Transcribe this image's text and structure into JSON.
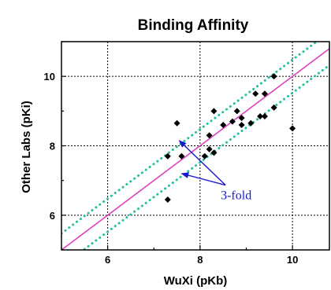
{
  "chart_data": {
    "type": "scatter",
    "title": "Binding Affinity",
    "xlabel": "WuXi (pKb)",
    "ylabel": "Other Labs (pKi)",
    "xlim": [
      5,
      10.8
    ],
    "ylim": [
      5,
      11
    ],
    "xticks": [
      6,
      8,
      10
    ],
    "yticks": [
      6,
      8,
      10
    ],
    "grid": true,
    "points": [
      {
        "x": 7.3,
        "y": 6.45
      },
      {
        "x": 7.3,
        "y": 7.7
      },
      {
        "x": 7.5,
        "y": 8.65
      },
      {
        "x": 7.6,
        "y": 7.7
      },
      {
        "x": 8.1,
        "y": 7.7
      },
      {
        "x": 8.2,
        "y": 7.9
      },
      {
        "x": 8.2,
        "y": 8.3
      },
      {
        "x": 8.3,
        "y": 7.8
      },
      {
        "x": 8.3,
        "y": 9.0
      },
      {
        "x": 8.5,
        "y": 8.6
      },
      {
        "x": 8.7,
        "y": 8.7
      },
      {
        "x": 8.8,
        "y": 9.0
      },
      {
        "x": 8.9,
        "y": 8.6
      },
      {
        "x": 8.9,
        "y": 8.8
      },
      {
        "x": 9.1,
        "y": 8.65
      },
      {
        "x": 9.2,
        "y": 9.5
      },
      {
        "x": 9.3,
        "y": 8.85
      },
      {
        "x": 9.4,
        "y": 9.5
      },
      {
        "x": 9.4,
        "y": 8.85
      },
      {
        "x": 9.6,
        "y": 9.1
      },
      {
        "x": 9.6,
        "y": 10.0
      },
      {
        "x": 10.0,
        "y": 8.5
      }
    ],
    "identity_line": {
      "slope": 1,
      "intercept": 0,
      "color": "#e040c0"
    },
    "fold_lines": {
      "fold": 3,
      "offset_log": 0.477,
      "color": "#20c0a0",
      "style": "dotted"
    },
    "marker_color": "#000000",
    "annotation": {
      "text": "3-fold",
      "color": "#1a1acc",
      "anchor": {
        "x": 8.55,
        "y": 6.55
      },
      "targets": [
        {
          "x": 7.55,
          "y": 8.15
        },
        {
          "x": 7.6,
          "y": 7.2
        }
      ]
    }
  }
}
